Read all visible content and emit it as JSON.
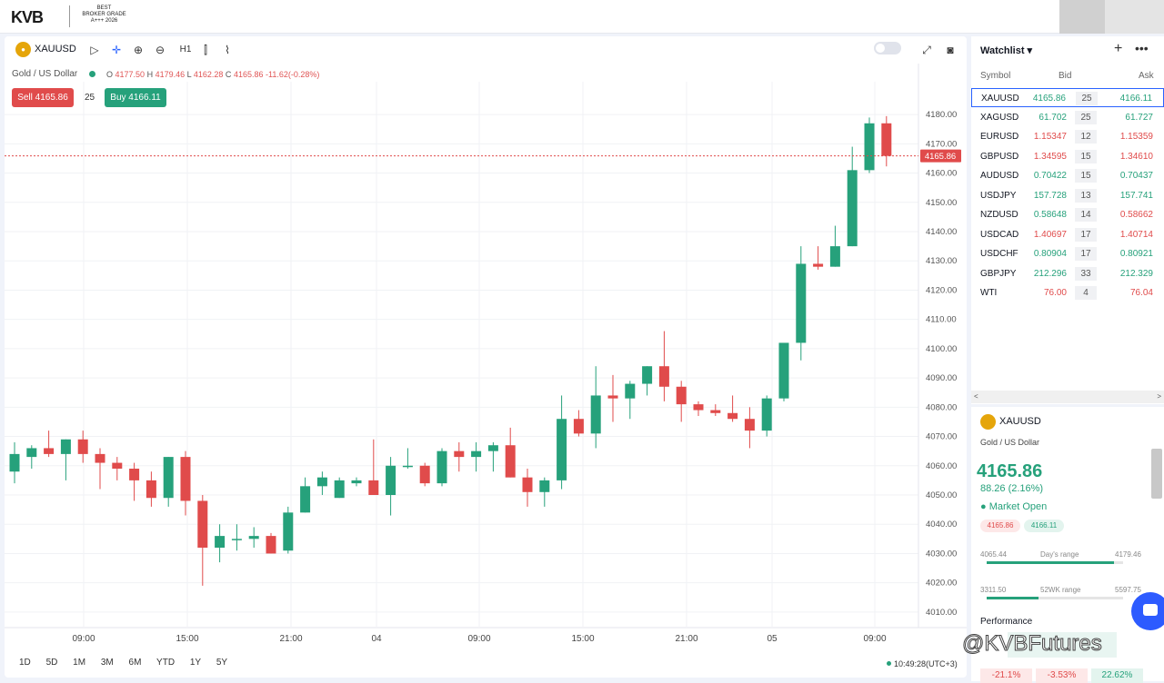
{
  "brand": {
    "logo": "KVB",
    "badge_lines": [
      "BEST",
      "BROKER GRADE",
      "A+++ 2026"
    ]
  },
  "chart": {
    "symbol": "XAUUSD",
    "symbol_desc": "Gold / US Dollar",
    "timeframe": "H1",
    "ohlc": {
      "o_label": "O",
      "o": "4177.50",
      "h_label": "H",
      "h": "4179.46",
      "l_label": "L",
      "l": "4162.28",
      "c_label": "C",
      "c": "4165.86",
      "change": "-11.62(-0.28%)"
    },
    "sell_label": "Sell 4165.86",
    "buy_label": "Buy 4166.11",
    "quantity": "25",
    "last_price_label": "4165.86",
    "periods": [
      "1D",
      "5D",
      "1M",
      "3M",
      "6M",
      "YTD",
      "1Y",
      "5Y"
    ],
    "clock": "10:49:28(UTC+3)"
  },
  "chart_data": {
    "type": "candlestick",
    "ylim": [
      4005,
      4185
    ],
    "yticks": [
      "4180.00",
      "4170.00",
      "4160.00",
      "4150.00",
      "4140.00",
      "4130.00",
      "4120.00",
      "4110.00",
      "4100.00",
      "4090.00",
      "4080.00",
      "4070.00",
      "4060.00",
      "4050.00",
      "4040.00",
      "4030.00",
      "4020.00",
      "4010.00"
    ],
    "xticks": [
      "09:00",
      "15:00",
      "21:00",
      "04",
      "09:00",
      "15:00",
      "21:00",
      "05",
      "09:00"
    ],
    "last_price": 4165.86,
    "candles": [
      {
        "o": 4058,
        "h": 4068,
        "l": 4054,
        "c": 4064
      },
      {
        "o": 4063,
        "h": 4067,
        "l": 4059,
        "c": 4066
      },
      {
        "o": 4066,
        "h": 4072,
        "l": 4063,
        "c": 4064
      },
      {
        "o": 4064,
        "h": 4069,
        "l": 4055,
        "c": 4069
      },
      {
        "o": 4069,
        "h": 4072,
        "l": 4061,
        "c": 4064
      },
      {
        "o": 4064,
        "h": 4066,
        "l": 4052,
        "c": 4061
      },
      {
        "o": 4061,
        "h": 4063,
        "l": 4055,
        "c": 4059
      },
      {
        "o": 4059,
        "h": 4061,
        "l": 4048,
        "c": 4055
      },
      {
        "o": 4055,
        "h": 4058,
        "l": 4046,
        "c": 4049
      },
      {
        "o": 4049,
        "h": 4063,
        "l": 4046,
        "c": 4063
      },
      {
        "o": 4063,
        "h": 4065,
        "l": 4043,
        "c": 4048
      },
      {
        "o": 4048,
        "h": 4050,
        "l": 4019,
        "c": 4032
      },
      {
        "o": 4032,
        "h": 4040,
        "l": 4027,
        "c": 4036
      },
      {
        "o": 4035,
        "h": 4040,
        "l": 4031,
        "c": 4035
      },
      {
        "o": 4035,
        "h": 4039,
        "l": 4032,
        "c": 4036
      },
      {
        "o": 4036,
        "h": 4037,
        "l": 4030,
        "c": 4030
      },
      {
        "o": 4031,
        "h": 4046,
        "l": 4030,
        "c": 4044
      },
      {
        "o": 4044,
        "h": 4056,
        "l": 4044,
        "c": 4053
      },
      {
        "o": 4053,
        "h": 4058,
        "l": 4050,
        "c": 4056
      },
      {
        "o": 4049,
        "h": 4056,
        "l": 4049,
        "c": 4055
      },
      {
        "o": 4054,
        "h": 4056,
        "l": 4053,
        "c": 4055
      },
      {
        "o": 4055,
        "h": 4069,
        "l": 4050,
        "c": 4050
      },
      {
        "o": 4050,
        "h": 4063,
        "l": 4043,
        "c": 4060
      },
      {
        "o": 4060,
        "h": 4066,
        "l": 4059,
        "c": 4060
      },
      {
        "o": 4060,
        "h": 4061,
        "l": 4053,
        "c": 4054
      },
      {
        "o": 4054,
        "h": 4066,
        "l": 4053,
        "c": 4065
      },
      {
        "o": 4065,
        "h": 4068,
        "l": 4058,
        "c": 4063
      },
      {
        "o": 4063,
        "h": 4068,
        "l": 4058,
        "c": 4065
      },
      {
        "o": 4065,
        "h": 4068,
        "l": 4058,
        "c": 4067
      },
      {
        "o": 4067,
        "h": 4073,
        "l": 4056,
        "c": 4056
      },
      {
        "o": 4056,
        "h": 4059,
        "l": 4046,
        "c": 4051
      },
      {
        "o": 4051,
        "h": 4056,
        "l": 4046,
        "c": 4055
      },
      {
        "o": 4055,
        "h": 4084,
        "l": 4052,
        "c": 4076
      },
      {
        "o": 4076,
        "h": 4079,
        "l": 4070,
        "c": 4071
      },
      {
        "o": 4071,
        "h": 4094,
        "l": 4066,
        "c": 4084
      },
      {
        "o": 4084,
        "h": 4091,
        "l": 4075,
        "c": 4083
      },
      {
        "o": 4083,
        "h": 4089,
        "l": 4076,
        "c": 4088
      },
      {
        "o": 4088,
        "h": 4094,
        "l": 4084,
        "c": 4094
      },
      {
        "o": 4094,
        "h": 4106,
        "l": 4082,
        "c": 4087
      },
      {
        "o": 4087,
        "h": 4089,
        "l": 4075,
        "c": 4081
      },
      {
        "o": 4081,
        "h": 4082,
        "l": 4077,
        "c": 4079
      },
      {
        "o": 4079,
        "h": 4081,
        "l": 4077,
        "c": 4078
      },
      {
        "o": 4078,
        "h": 4084,
        "l": 4075,
        "c": 4076
      },
      {
        "o": 4076,
        "h": 4080,
        "l": 4066,
        "c": 4072
      },
      {
        "o": 4072,
        "h": 4084,
        "l": 4070,
        "c": 4083
      },
      {
        "o": 4083,
        "h": 4102,
        "l": 4082,
        "c": 4102
      },
      {
        "o": 4102,
        "h": 4135,
        "l": 4096,
        "c": 4129
      },
      {
        "o": 4129,
        "h": 4135,
        "l": 4127,
        "c": 4128
      },
      {
        "o": 4128,
        "h": 4142,
        "l": 4128,
        "c": 4135
      },
      {
        "o": 4135,
        "h": 4169,
        "l": 4135,
        "c": 4161
      },
      {
        "o": 4161,
        "h": 4179,
        "l": 4160,
        "c": 4177
      },
      {
        "o": 4177,
        "h": 4179.46,
        "l": 4162.28,
        "c": 4165.86
      }
    ]
  },
  "watchlist": {
    "title": "Watchlist",
    "headers": {
      "symbol": "Symbol",
      "bid": "Bid",
      "ask": "Ask"
    },
    "rows": [
      {
        "symbol": "XAUUSD",
        "bid": "4165.86",
        "spread": "25",
        "ask": "4166.11",
        "bid_dir": "up",
        "ask_dir": "up"
      },
      {
        "symbol": "XAGUSD",
        "bid": "61.702",
        "spread": "25",
        "ask": "61.727",
        "bid_dir": "up",
        "ask_dir": "up"
      },
      {
        "symbol": "EURUSD",
        "bid": "1.15347",
        "spread": "12",
        "ask": "1.15359",
        "bid_dir": "dn",
        "ask_dir": "dn"
      },
      {
        "symbol": "GBPUSD",
        "bid": "1.34595",
        "spread": "15",
        "ask": "1.34610",
        "bid_dir": "dn",
        "ask_dir": "dn"
      },
      {
        "symbol": "AUDUSD",
        "bid": "0.70422",
        "spread": "15",
        "ask": "0.70437",
        "bid_dir": "up",
        "ask_dir": "up"
      },
      {
        "symbol": "USDJPY",
        "bid": "157.728",
        "spread": "13",
        "ask": "157.741",
        "bid_dir": "up",
        "ask_dir": "up"
      },
      {
        "symbol": "NZDUSD",
        "bid": "0.58648",
        "spread": "14",
        "ask": "0.58662",
        "bid_dir": "up",
        "ask_dir": "dn"
      },
      {
        "symbol": "USDCAD",
        "bid": "1.40697",
        "spread": "17",
        "ask": "1.40714",
        "bid_dir": "dn",
        "ask_dir": "dn"
      },
      {
        "symbol": "USDCHF",
        "bid": "0.80904",
        "spread": "17",
        "ask": "0.80921",
        "bid_dir": "up",
        "ask_dir": "up"
      },
      {
        "symbol": "GBPJPY",
        "bid": "212.296",
        "spread": "33",
        "ask": "212.329",
        "bid_dir": "up",
        "ask_dir": "up"
      },
      {
        "symbol": "WTI",
        "bid": "76.00",
        "spread": "4",
        "ask": "76.04",
        "bid_dir": "dn",
        "ask_dir": "dn"
      }
    ]
  },
  "info": {
    "symbol": "XAUUSD",
    "desc": "Gold / US Dollar",
    "price": "4165.86",
    "change": "88.26 (2.16%)",
    "market_status": "Market Open",
    "bid_pill": "4165.86",
    "ask_pill": "4166.11",
    "day_range": {
      "low": "4065.44",
      "label": "Day's range",
      "high": "4179.46",
      "fill": 0.93
    },
    "wk52_range": {
      "low": "3311.50",
      "label": "52WK range",
      "high": "5597.75",
      "fill": 0.38
    },
    "performance_label": "Performance",
    "performance": [
      "-21.1%",
      "-3.53%",
      "22.62%"
    ]
  },
  "watermark": "@KVBFutures",
  "colors": {
    "up": "#26a17b",
    "down": "#e04b4b",
    "accent": "#2962ff"
  }
}
